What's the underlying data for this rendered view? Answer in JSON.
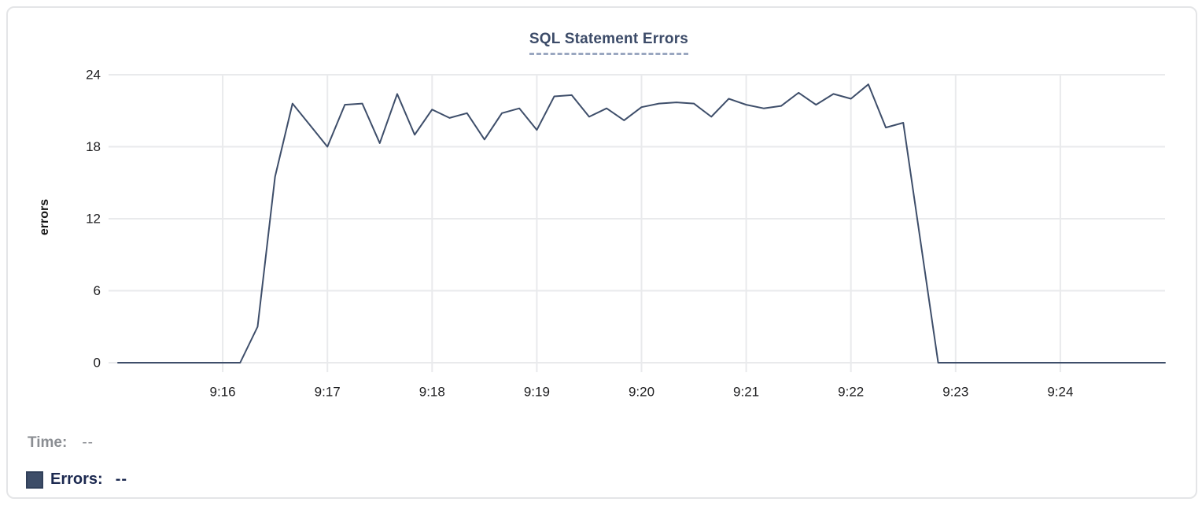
{
  "chart_data": {
    "type": "line",
    "title": "SQL Statement Errors",
    "xlabel": "",
    "ylabel": "errors",
    "x_range": [
      "9:15:00",
      "9:25:00"
    ],
    "y_range": [
      0,
      24
    ],
    "y_ticks": [
      0,
      6,
      12,
      18,
      24
    ],
    "x_ticks": [
      "9:16",
      "9:17",
      "9:18",
      "9:19",
      "9:20",
      "9:21",
      "9:22",
      "9:23",
      "9:24"
    ],
    "grid": true,
    "legend_position": "bottom-left",
    "series": [
      {
        "name": "Errors",
        "color": "#3e4e6a",
        "x": [
          "9:15:00",
          "9:15:10",
          "9:15:20",
          "9:15:30",
          "9:15:40",
          "9:15:50",
          "9:16:00",
          "9:16:10",
          "9:16:20",
          "9:16:30",
          "9:16:40",
          "9:16:50",
          "9:17:00",
          "9:17:10",
          "9:17:20",
          "9:17:30",
          "9:17:40",
          "9:17:50",
          "9:18:00",
          "9:18:10",
          "9:18:20",
          "9:18:30",
          "9:18:40",
          "9:18:50",
          "9:19:00",
          "9:19:10",
          "9:19:20",
          "9:19:30",
          "9:19:40",
          "9:19:50",
          "9:20:00",
          "9:20:10",
          "9:20:20",
          "9:20:30",
          "9:20:40",
          "9:20:50",
          "9:21:00",
          "9:21:10",
          "9:21:20",
          "9:21:30",
          "9:21:40",
          "9:21:50",
          "9:22:00",
          "9:22:10",
          "9:22:20",
          "9:22:30",
          "9:22:40",
          "9:22:50",
          "9:23:00",
          "9:23:10",
          "9:23:20",
          "9:23:30",
          "9:23:40",
          "9:23:50",
          "9:24:00",
          "9:24:10",
          "9:24:20",
          "9:24:30",
          "9:24:40",
          "9:24:50",
          "9:25:00"
        ],
        "values": [
          0,
          0,
          0,
          0,
          0,
          0,
          0,
          0,
          3,
          15.5,
          21.6,
          19.8,
          18,
          21.5,
          21.6,
          18.3,
          22.4,
          19,
          21.1,
          20.4,
          20.8,
          18.6,
          20.8,
          21.2,
          19.4,
          22.2,
          22.3,
          20.5,
          21.2,
          20.2,
          21.3,
          21.6,
          21.7,
          21.6,
          20.5,
          22,
          21.5,
          21.2,
          21.4,
          22.5,
          21.5,
          22.4,
          22,
          23.2,
          19.6,
          20,
          10,
          0,
          0,
          0,
          0,
          0,
          0,
          0,
          0,
          0,
          0,
          0,
          0,
          0,
          0
        ]
      }
    ],
    "colors": {
      "line": "#3e4e6a",
      "grid": "#e9eaec",
      "tick_text": "#1e1e20",
      "title_text": "#3c4b68",
      "title_underline": "#9aa7c0"
    }
  },
  "legend": {
    "time_label": "Time:",
    "time_value": "--",
    "errors_label": "Errors:",
    "errors_value": "--",
    "swatch_color": "#3d4d68"
  }
}
